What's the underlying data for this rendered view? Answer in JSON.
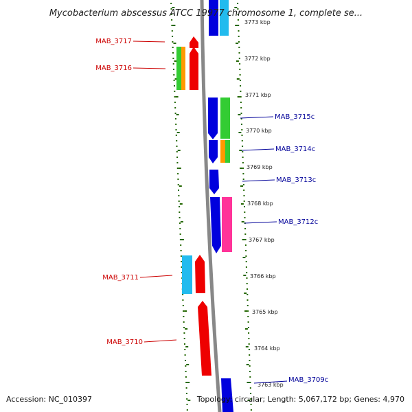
{
  "title": "Mycobacterium abscessus ATCC 19977 chromosome 1, complete se...",
  "accession": "Accession: NC_010397",
  "topology": "Topology: circular; Length: 5,067,172 bp; Genes: 4,970",
  "colors": {
    "forward_label": "#cc0000",
    "reverse_label": "#000099",
    "forward_gene": "#ee0000",
    "reverse_gene": "#0000dd",
    "green": "#33cc33",
    "orange": "#ff9900",
    "pink": "#ff3399",
    "cyan": "#22bbee",
    "backbone": "#888888",
    "tick": "#226600"
  },
  "kbp_ticks": [
    "3773 kbp",
    "3772 kbp",
    "3771 kbp",
    "3770 kbp",
    "3769 kbp",
    "3768 kbp",
    "3767 kbp",
    "3766 kbp",
    "3765 kbp",
    "3764 kbp",
    "3763 kbp"
  ],
  "forward_genes": [
    {
      "label": "MAB_3717",
      "color": "forward_gene"
    },
    {
      "label": "MAB_3716",
      "color": "forward_gene"
    },
    {
      "label": "MAB_3711",
      "color": "forward_gene"
    },
    {
      "label": "MAB_3710",
      "color": "forward_gene"
    }
  ],
  "reverse_genes": [
    {
      "label": "MAB_3715c",
      "color": "reverse_gene"
    },
    {
      "label": "MAB_3714c",
      "color": "reverse_gene"
    },
    {
      "label": "MAB_3713c",
      "color": "reverse_gene"
    },
    {
      "label": "MAB_3712c",
      "color": "reverse_gene"
    },
    {
      "label": "MAB_3709c",
      "color": "reverse_gene"
    }
  ]
}
